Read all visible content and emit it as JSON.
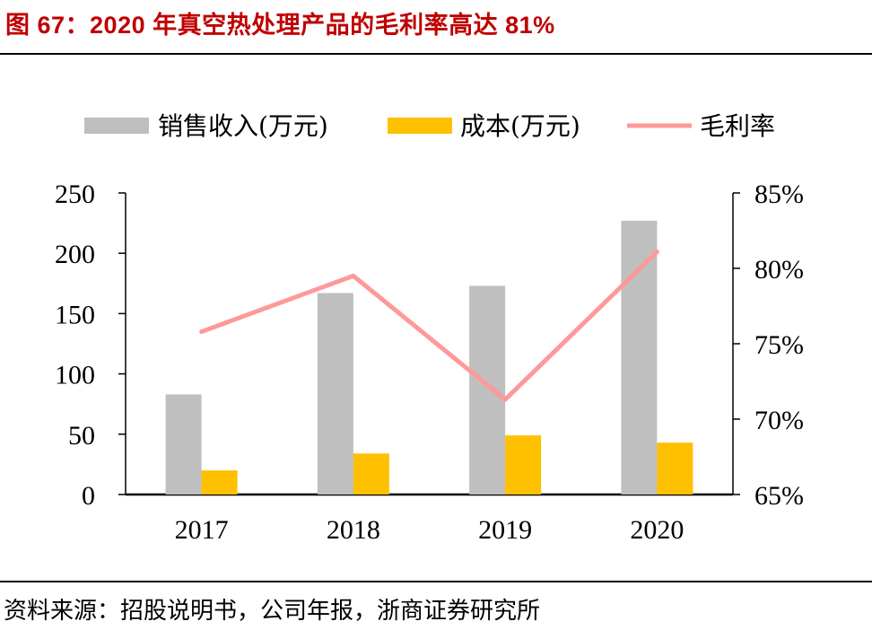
{
  "title": "图 67：2020 年真空热处理产品的毛利率高达 81%",
  "source": "资料来源：招股说明书，公司年报，浙商证券研究所",
  "chart_data": {
    "type": "bar",
    "categories": [
      "2017",
      "2018",
      "2019",
      "2020"
    ],
    "series": [
      {
        "name": "销售收入(万元)",
        "kind": "bar",
        "axis": "left",
        "color": "#bfbfbf",
        "values": [
          83,
          167,
          173,
          227
        ]
      },
      {
        "name": "成本(万元)",
        "kind": "bar",
        "axis": "left",
        "color": "#ffc000",
        "values": [
          20,
          34,
          49,
          43
        ]
      },
      {
        "name": "毛利率",
        "kind": "line",
        "axis": "right",
        "color": "#ff9999",
        "values": [
          75.8,
          79.5,
          71.3,
          81.1
        ]
      }
    ],
    "ylim": [
      0,
      250
    ],
    "yticks": [
      "0",
      "50",
      "100",
      "150",
      "200",
      "250"
    ],
    "y2lim": [
      65,
      85
    ],
    "y2ticks": [
      "65%",
      "70%",
      "75%",
      "80%",
      "85%"
    ],
    "legend_position": "top",
    "grid": false
  }
}
